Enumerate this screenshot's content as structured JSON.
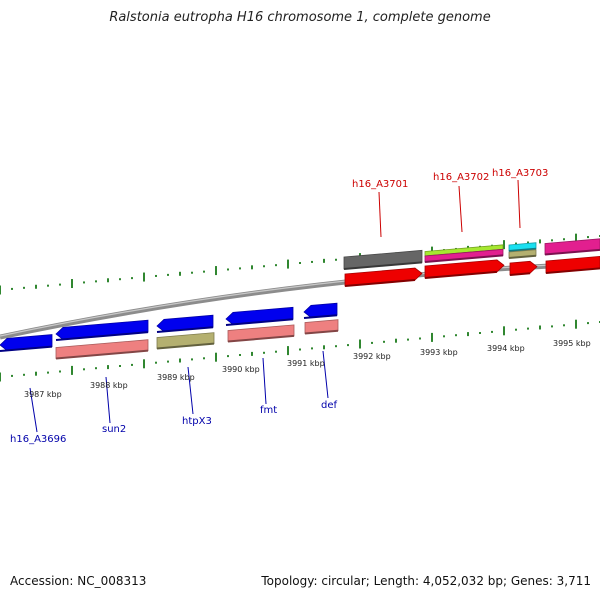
{
  "title": "Ralstonia eutropha H16 chromosome 1, complete genome",
  "footer": {
    "accession": "Accession: NC_008313",
    "summary": "Topology: circular; Length: 4,052,032 bp; Genes: 3,711"
  },
  "scale_labels": [
    "3987 kbp",
    "3988 kbp",
    "3989 kbp",
    "3990 kbp",
    "3991 kbp",
    "3992 kbp",
    "3993 kbp",
    "3994 kbp",
    "3995 kbp"
  ],
  "gene_labels_top": [
    "h16_A3701",
    "h16_A3702",
    "h16_A3703"
  ],
  "gene_labels_bottom": [
    "h16_A3696",
    "sun2",
    "htpX3",
    "fmt",
    "def"
  ],
  "colors": {
    "label_top": "#cc0000",
    "label_bottom": "#0000aa",
    "tick": "#1a7a1a",
    "backbone": "#8c8c8c",
    "gene_blue": "#0000ee",
    "gene_red": "#ee0000",
    "gene_salmon": "#ee8080",
    "gene_olive": "#b4b070",
    "gene_gray": "#666666",
    "gene_lime": "#a6e830",
    "gene_magenta": "#e21f8f",
    "gene_cyan": "#19e0f0"
  }
}
